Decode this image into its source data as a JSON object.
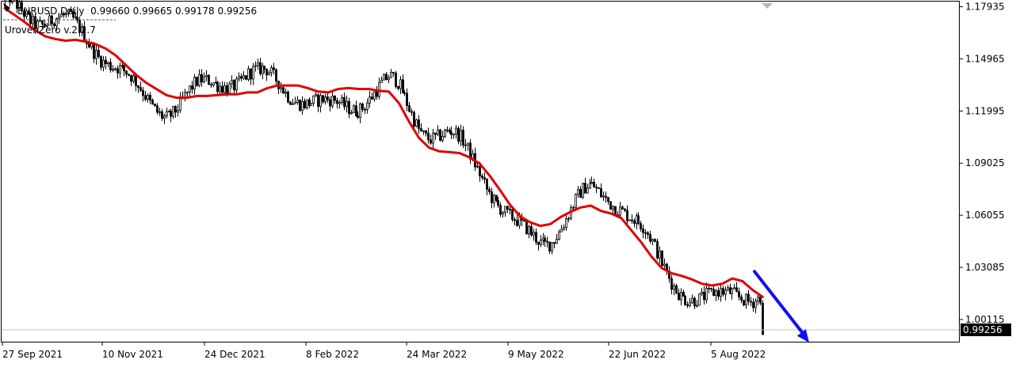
{
  "header": {
    "symbol_line": "EURUSD,Daily  0.99660 0.99665 0.99178 0.99256",
    "indicator_label": "UrovenZero v.2.2.7"
  },
  "colors": {
    "background": "#ffffff",
    "frame": "#000000",
    "candle": "#000000",
    "moving_average": "#e00000",
    "arrow": "#1010f0",
    "price_line": "#c0c0c0",
    "price_tag_bg": "#000000",
    "price_tag_text": "#ffffff"
  },
  "chart_data": {
    "type": "candlestick",
    "symbol": "EURUSD",
    "timeframe": "Daily",
    "ohlc_last": {
      "open": 0.9966,
      "high": 0.99665,
      "low": 0.99178,
      "close": 0.99256
    },
    "current_price_label": "0.99256",
    "ylim": [
      0.9885,
      1.1823
    ],
    "y_ticks": [
      "1.17935",
      "1.14965",
      "1.11995",
      "1.09025",
      "1.06055",
      "1.03085",
      "1.00115"
    ],
    "x_tick_labels": [
      "27 Sep 2021",
      "10 Nov 2021",
      "24 Dec 2021",
      "8 Feb 2022",
      "24 Mar 2022",
      "9 May 2022",
      "22 Jun 2022",
      "5 Aug 2022"
    ],
    "moving_average_values": [
      1.1785,
      1.1745,
      1.1705,
      1.166,
      1.1625,
      1.161,
      1.16,
      1.1605,
      1.1595,
      1.158,
      1.1555,
      1.1515,
      1.146,
      1.1405,
      1.136,
      1.1325,
      1.129,
      1.1275,
      1.1275,
      1.1285,
      1.1285,
      1.129,
      1.1295,
      1.1295,
      1.1305,
      1.1305,
      1.133,
      1.1345,
      1.1345,
      1.1345,
      1.133,
      1.131,
      1.1305,
      1.1325,
      1.133,
      1.1325,
      1.1325,
      1.1315,
      1.131,
      1.1245,
      1.114,
      1.1045,
      1.099,
      1.097,
      1.0965,
      1.096,
      1.0935,
      1.09,
      1.083,
      1.075,
      1.0665,
      1.06,
      1.0565,
      1.0545,
      1.0555,
      1.0595,
      1.0625,
      1.065,
      1.066,
      1.063,
      1.0615,
      1.059,
      1.052,
      1.045,
      1.037,
      1.0305,
      1.0275,
      1.026,
      1.024,
      1.0215,
      1.0205,
      1.0215,
      1.0245,
      1.023,
      1.018,
      1.014
    ],
    "trend_arrow": {
      "direction": "down",
      "from": {
        "x": "2022-08-13",
        "y": 1.0285
      },
      "to": {
        "x": "2022-09-07",
        "y": 0.988
      }
    }
  }
}
